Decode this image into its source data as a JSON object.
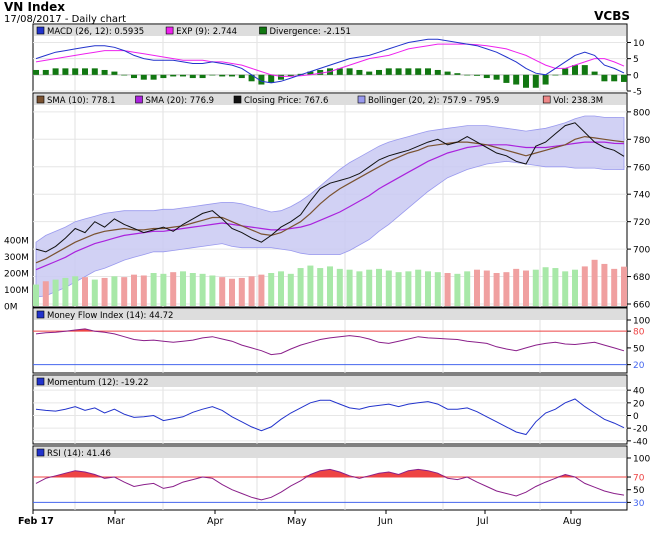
{
  "header": {
    "title": "VN Index",
    "subtitle": "17/08/2017 - Daily chart",
    "source": "VCBS"
  },
  "chart_data": {
    "type": "line",
    "x_months": [
      "Feb 17",
      "Mar",
      "Apr",
      "May",
      "Jun",
      "Jul",
      "Aug"
    ],
    "macd_panel": {
      "legend": [
        {
          "label": "MACD (26, 12): 0.5935",
          "color": "#2233cc"
        },
        {
          "label": "EXP (9): 2.744",
          "color": "#ee22ee"
        },
        {
          "label": "Divergence: -2.151",
          "color": "#117711"
        }
      ],
      "ylim": [
        -5,
        12
      ],
      "yticks": [
        "10",
        "5",
        "0",
        "-5"
      ],
      "macd": [
        5,
        6,
        7,
        7.5,
        8,
        8.5,
        9,
        9,
        8.5,
        7.5,
        6,
        5,
        4.5,
        4.5,
        4.5,
        4,
        3.5,
        3.5,
        4,
        3.5,
        3,
        2,
        0,
        -2,
        -2.5,
        -2,
        -1,
        0,
        1,
        2,
        3,
        4,
        5,
        5.5,
        6,
        7,
        8,
        9,
        10,
        10.5,
        11,
        11,
        10.5,
        10,
        9.5,
        9,
        8,
        7,
        5.5,
        4,
        2,
        0.5,
        0,
        2,
        4,
        6,
        7,
        6,
        3,
        2,
        0.6
      ],
      "exp": [
        4,
        4.5,
        5,
        5.5,
        6,
        6.5,
        7,
        7.5,
        7.5,
        7.5,
        7,
        6.5,
        6,
        5.5,
        5,
        4.5,
        4.5,
        4.5,
        4,
        4,
        3.5,
        3,
        2,
        1,
        0,
        -0.5,
        -0.5,
        -0.3,
        0,
        0.5,
        1,
        2,
        3,
        4,
        5,
        5.5,
        6,
        7,
        8,
        8.5,
        9,
        9.5,
        9.5,
        9.5,
        9.5,
        9.3,
        9,
        8.5,
        8,
        7,
        6,
        4.5,
        3,
        2,
        2,
        3,
        4,
        5,
        5,
        4,
        2.7
      ],
      "divergence": [
        1.5,
        1.5,
        2,
        2,
        2,
        2,
        2,
        1.5,
        1,
        0,
        -1,
        -1.5,
        -1.5,
        -1,
        -0.5,
        -0.5,
        -1,
        -1,
        0,
        -0.5,
        -0.5,
        -1,
        -2,
        -3,
        -2.5,
        -1.5,
        -0.5,
        0.3,
        1,
        1.5,
        2,
        2,
        2,
        1.5,
        1,
        1.5,
        2,
        2,
        2,
        2,
        2,
        1.5,
        1,
        0.5,
        0,
        -0.3,
        -1,
        -1.5,
        -2.5,
        -3,
        -4,
        -4,
        -3,
        0,
        2,
        3,
        3,
        1,
        -2,
        -2,
        -2.2
      ]
    },
    "price_panel": {
      "legend": [
        {
          "label": "SMA (10): 778.1",
          "color": "#7a5230"
        },
        {
          "label": "SMA (20): 776.9",
          "color": "#aa22dd"
        },
        {
          "label": "Closing Price: 767.6",
          "color": "#111111"
        },
        {
          "label": "Bollinger (20, 2): 757.9 - 795.9",
          "color": "#9999ee"
        },
        {
          "label": "Vol: 238.3M",
          "color": "#ee8888"
        }
      ],
      "ylim": [
        660,
        805
      ],
      "yticks": [
        "800",
        "780",
        "760",
        "740",
        "720",
        "700",
        "680",
        "660"
      ],
      "vol_ticks": [
        "400M",
        "300M",
        "200M",
        "100M",
        "0M"
      ],
      "vol_max": 400,
      "close": [
        700,
        698,
        702,
        708,
        715,
        712,
        720,
        716,
        722,
        718,
        715,
        712,
        714,
        716,
        713,
        718,
        722,
        726,
        728,
        722,
        715,
        712,
        708,
        705,
        710,
        716,
        720,
        725,
        735,
        744,
        748,
        750,
        752,
        755,
        760,
        765,
        768,
        770,
        772,
        775,
        778,
        780,
        776,
        778,
        782,
        778,
        774,
        770,
        768,
        764,
        762,
        775,
        778,
        784,
        790,
        792,
        785,
        778,
        774,
        772,
        767.6
      ],
      "sma10": [
        690,
        693,
        697,
        701,
        705,
        708,
        711,
        713,
        714,
        715,
        714,
        714,
        715,
        715,
        716,
        717,
        719,
        721,
        723,
        723,
        720,
        717,
        714,
        711,
        710,
        712,
        716,
        720,
        726,
        733,
        739,
        744,
        748,
        752,
        756,
        760,
        764,
        767,
        770,
        772,
        775,
        776,
        777,
        778,
        778,
        777,
        776,
        774,
        772,
        770,
        768,
        770,
        772,
        774,
        776,
        780,
        782,
        781,
        780,
        779,
        778.1
      ],
      "sma20": [
        685,
        688,
        691,
        694,
        698,
        701,
        704,
        706,
        708,
        710,
        711,
        712,
        713,
        713,
        714,
        715,
        716,
        717,
        718,
        719,
        718,
        717,
        716,
        715,
        714,
        714,
        715,
        716,
        718,
        721,
        724,
        727,
        731,
        735,
        739,
        744,
        748,
        752,
        756,
        760,
        764,
        767,
        770,
        772,
        774,
        775,
        776,
        776,
        776,
        775,
        774,
        774,
        774,
        775,
        776,
        777,
        778,
        778,
        778,
        777,
        776.9
      ],
      "boll_upper": [
        705,
        710,
        713,
        716,
        720,
        722,
        724,
        726,
        727,
        728,
        728,
        728,
        728,
        729,
        729,
        730,
        731,
        732,
        733,
        734,
        734,
        733,
        731,
        729,
        727,
        728,
        731,
        735,
        740,
        746,
        752,
        758,
        763,
        767,
        771,
        775,
        778,
        780,
        782,
        784,
        786,
        787,
        788,
        789,
        790,
        790,
        790,
        789,
        788,
        787,
        786,
        787,
        788,
        790,
        792,
        795,
        797,
        797,
        796,
        796,
        795.9
      ],
      "boll_lower": [
        665,
        666,
        669,
        672,
        676,
        680,
        684,
        686,
        689,
        692,
        694,
        696,
        698,
        698,
        699,
        700,
        701,
        702,
        703,
        704,
        702,
        701,
        701,
        701,
        701,
        700,
        699,
        697,
        696,
        696,
        696,
        696,
        699,
        703,
        707,
        713,
        718,
        724,
        730,
        736,
        742,
        747,
        752,
        755,
        758,
        760,
        762,
        763,
        764,
        763,
        762,
        761,
        760,
        760,
        760,
        759,
        759,
        759,
        758,
        758,
        757.9
      ],
      "volume": [
        130,
        150,
        160,
        170,
        180,
        175,
        160,
        170,
        180,
        175,
        190,
        185,
        200,
        195,
        205,
        210,
        200,
        195,
        185,
        175,
        165,
        170,
        180,
        190,
        200,
        210,
        195,
        230,
        245,
        230,
        240,
        225,
        220,
        210,
        220,
        225,
        215,
        205,
        210,
        220,
        210,
        205,
        200,
        195,
        210,
        220,
        215,
        200,
        205,
        225,
        215,
        220,
        235,
        230,
        210,
        220,
        240,
        280,
        255,
        225,
        238.3
      ],
      "volume_up": [
        1,
        0,
        1,
        1,
        1,
        0,
        1,
        0,
        1,
        0,
        0,
        0,
        1,
        1,
        0,
        1,
        1,
        1,
        1,
        0,
        0,
        0,
        0,
        0,
        1,
        1,
        1,
        1,
        1,
        1,
        1,
        1,
        1,
        1,
        1,
        1,
        1,
        1,
        1,
        1,
        1,
        1,
        0,
        1,
        1,
        0,
        0,
        0,
        0,
        0,
        0,
        1,
        1,
        1,
        1,
        1,
        0,
        0,
        0,
        0,
        0
      ]
    },
    "mfi_panel": {
      "legend": [
        {
          "label": "Money Flow Index (14): 44.72",
          "color": "#2233cc"
        }
      ],
      "ylim": [
        5,
        100
      ],
      "yticks": [
        "100",
        "80",
        "50",
        "20"
      ],
      "upper_line": 80,
      "lower_line": 20,
      "values": [
        75,
        77,
        78,
        80,
        82,
        84,
        80,
        78,
        75,
        70,
        65,
        63,
        64,
        62,
        60,
        62,
        64,
        68,
        70,
        66,
        62,
        55,
        50,
        45,
        38,
        40,
        48,
        55,
        60,
        65,
        68,
        70,
        72,
        70,
        66,
        60,
        58,
        62,
        66,
        70,
        68,
        67,
        66,
        65,
        62,
        60,
        58,
        52,
        48,
        45,
        50,
        55,
        58,
        60,
        57,
        56,
        58,
        60,
        55,
        50,
        44.72
      ]
    },
    "momentum_panel": {
      "legend": [
        {
          "label": "Momentum (12): -19.22",
          "color": "#2233cc"
        }
      ],
      "ylim": [
        -45,
        45
      ],
      "yticks": [
        "40",
        "20",
        "0",
        "-20",
        "-40"
      ],
      "values": [
        10,
        8,
        7,
        10,
        14,
        8,
        12,
        4,
        10,
        2,
        -3,
        -2,
        0,
        -8,
        -5,
        -2,
        5,
        10,
        14,
        8,
        -2,
        -10,
        -18,
        -24,
        -18,
        -6,
        4,
        12,
        20,
        24,
        24,
        18,
        12,
        10,
        14,
        16,
        18,
        14,
        18,
        20,
        22,
        18,
        10,
        10,
        12,
        6,
        -2,
        -10,
        -18,
        -26,
        -30,
        -10,
        4,
        10,
        20,
        26,
        14,
        4,
        -6,
        -12,
        -19.22
      ]
    },
    "rsi_panel": {
      "legend": [
        {
          "label": "RSI (14): 41.46",
          "color": "#2233cc"
        }
      ],
      "ylim": [
        18,
        100
      ],
      "yticks": [
        "100",
        "70",
        "50",
        "30"
      ],
      "upper_line": 70,
      "lower_line": 30,
      "values": [
        60,
        68,
        72,
        76,
        80,
        78,
        74,
        68,
        70,
        62,
        55,
        58,
        60,
        52,
        55,
        62,
        66,
        70,
        68,
        58,
        50,
        44,
        38,
        34,
        38,
        46,
        56,
        64,
        74,
        80,
        82,
        78,
        72,
        68,
        72,
        76,
        78,
        74,
        80,
        82,
        80,
        76,
        68,
        66,
        70,
        62,
        55,
        48,
        44,
        40,
        46,
        55,
        62,
        68,
        74,
        70,
        60,
        54,
        48,
        44,
        41.46
      ]
    }
  }
}
